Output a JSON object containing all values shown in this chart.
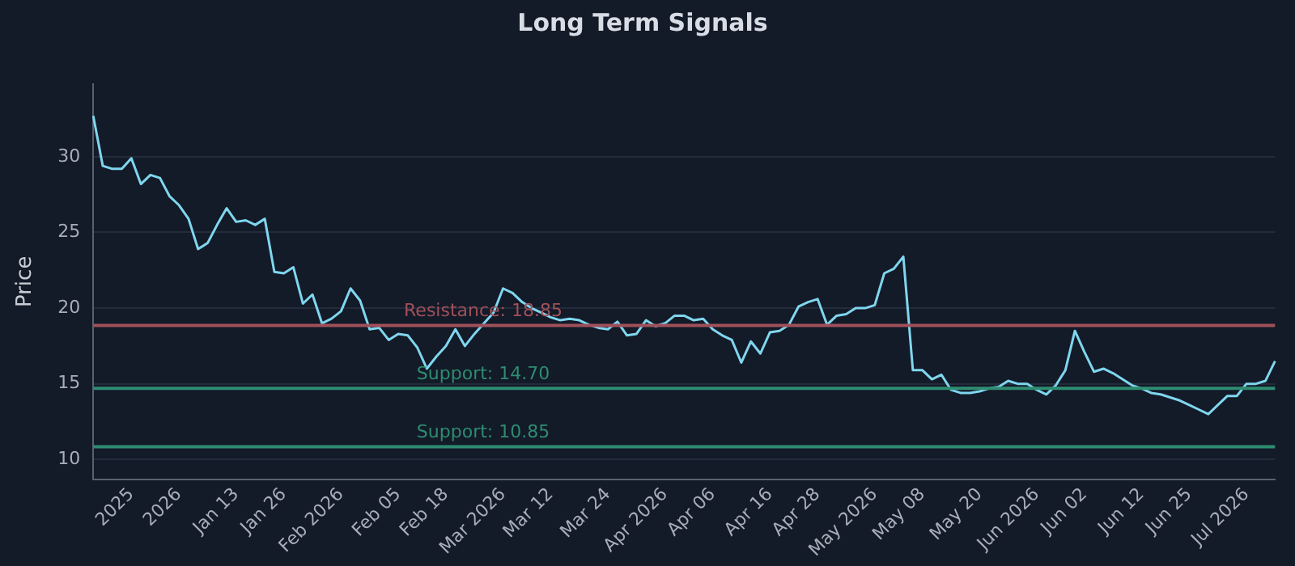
{
  "chart_data": {
    "type": "line",
    "title": "Long Term Signals",
    "ylabel": "Price",
    "categories": [
      null,
      null,
      null,
      null,
      "2025",
      null,
      null,
      null,
      null,
      "2026",
      null,
      null,
      null,
      null,
      null,
      "Jan 13",
      null,
      null,
      null,
      null,
      "Jan 26",
      null,
      null,
      null,
      null,
      null,
      "Feb 2026",
      null,
      null,
      null,
      null,
      null,
      "Feb 05",
      null,
      null,
      null,
      null,
      "Feb 18",
      null,
      null,
      null,
      null,
      null,
      "Mar 2026",
      null,
      null,
      null,
      null,
      "Mar 12",
      null,
      null,
      null,
      null,
      null,
      "Mar 24",
      null,
      null,
      null,
      null,
      null,
      "Apr 2026",
      null,
      null,
      null,
      null,
      "Apr 06",
      null,
      null,
      null,
      null,
      null,
      "Apr 16",
      null,
      null,
      null,
      null,
      "Apr 28",
      null,
      null,
      null,
      null,
      null,
      "May 2026",
      null,
      null,
      null,
      null,
      "May 08",
      null,
      null,
      null,
      null,
      null,
      "May 20",
      null,
      null,
      null,
      null,
      null,
      "Jun 2026",
      null,
      null,
      null,
      null,
      "Jun 02",
      null,
      null,
      null,
      null,
      null,
      "Jun 12",
      null,
      null,
      null,
      null,
      "Jun 25",
      null,
      null,
      null,
      null,
      null,
      "Jul 2026",
      null,
      null,
      null
    ],
    "series": [
      {
        "color": "#7fd6ee",
        "values": [
          32.7,
          29.4,
          29.2,
          29.2,
          29.9,
          28.2,
          28.8,
          28.6,
          27.4,
          26.8,
          25.9,
          23.9,
          24.3,
          25.5,
          26.6,
          25.7,
          25.8,
          25.5,
          25.9,
          22.4,
          22.3,
          22.7,
          20.3,
          20.9,
          19.0,
          19.3,
          19.8,
          21.3,
          20.5,
          18.6,
          18.7,
          17.9,
          18.3,
          18.2,
          17.4,
          16.0,
          16.8,
          17.5,
          18.6,
          17.5,
          18.3,
          19.0,
          19.7,
          21.3,
          21.0,
          20.4,
          20.0,
          19.7,
          19.4,
          19.2,
          19.3,
          19.2,
          18.9,
          18.7,
          18.6,
          19.1,
          18.2,
          18.3,
          19.2,
          18.8,
          19.0,
          19.5,
          19.5,
          19.2,
          19.3,
          18.6,
          18.2,
          17.9,
          16.4,
          17.8,
          17.0,
          18.4,
          18.5,
          18.9,
          20.1,
          20.4,
          20.6,
          18.9,
          19.5,
          19.6,
          20.0,
          20.0,
          20.2,
          22.3,
          22.6,
          23.4,
          15.9,
          15.9,
          15.3,
          15.6,
          14.6,
          14.4,
          14.4,
          14.5,
          14.7,
          14.8,
          15.2,
          15.0,
          15.0,
          14.6,
          14.3,
          14.9,
          15.9,
          18.5,
          17.1,
          15.8,
          16.0,
          15.7,
          15.3,
          14.9,
          14.7,
          14.4,
          14.3,
          14.1,
          13.9,
          13.6,
          13.3,
          13.0,
          13.6,
          14.2,
          14.2,
          15.0,
          15.0,
          15.2,
          16.5
        ]
      }
    ],
    "ylim": [
      8.7,
      34.8
    ],
    "yticks": [
      10,
      15,
      20,
      25,
      30
    ],
    "grid": "y",
    "legend": false,
    "marker": "none",
    "line_style": "solid",
    "ref_lines": [
      {
        "axis": "y",
        "value": 18.85,
        "label": "Resistance: 18.85",
        "color": "#a0505a"
      },
      {
        "axis": "y",
        "value": 14.7,
        "label": "Support: 14.70",
        "color": "#2e8c70"
      },
      {
        "axis": "y",
        "value": 10.85,
        "label": "Support: 10.85",
        "color": "#2e8c70"
      }
    ]
  }
}
